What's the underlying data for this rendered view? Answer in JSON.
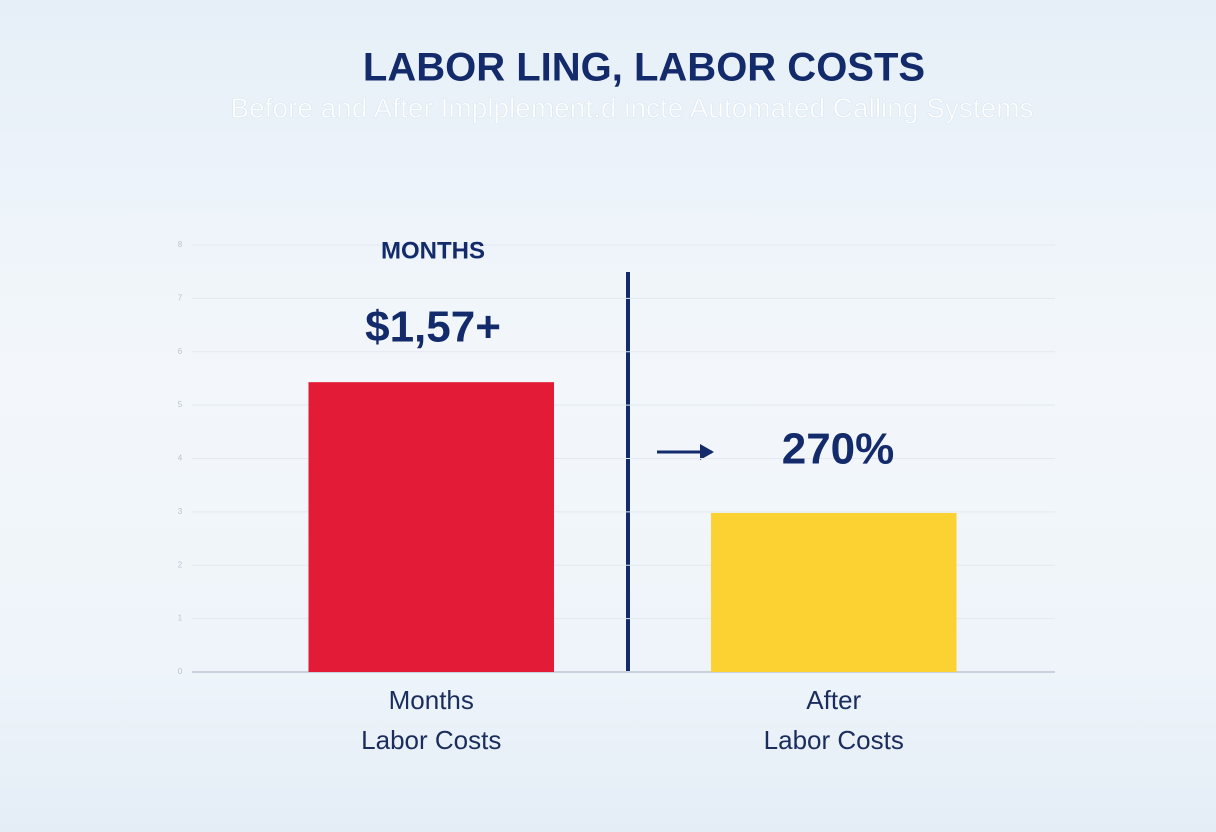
{
  "chart_data": {
    "type": "bar",
    "title": "LABOR LING, LABOR COSTS",
    "subtitle": "Before and After Implplement.d incte Automated Calling Systems",
    "categories": [
      "Months\nLabor Costs",
      "After\nLabor Costs"
    ],
    "values": [
      5.43,
      2.98
    ],
    "colors": [
      "#e31b36",
      "#fcd232"
    ],
    "ylim": [
      0,
      8
    ],
    "yticks": [
      0,
      1,
      2,
      3,
      4,
      5,
      6,
      7,
      8
    ],
    "grid": true,
    "annotations": [
      "MONTHS",
      "$1,57+",
      "270%"
    ]
  }
}
